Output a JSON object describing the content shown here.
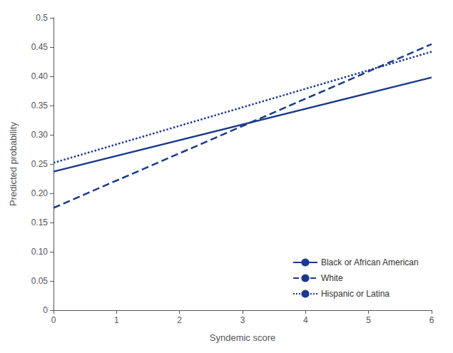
{
  "chart_data": {
    "type": "line",
    "xlabel": "Syndemic score",
    "ylabel": "Predicted probability",
    "x": [
      0,
      6
    ],
    "series": [
      {
        "name": "Black or African American",
        "values": [
          0.237,
          0.398
        ],
        "line_style": "solid"
      },
      {
        "name": "White",
        "values": [
          0.175,
          0.455
        ],
        "line_style": "dashed"
      },
      {
        "name": "Hispanic or Latina",
        "values": [
          0.252,
          0.442
        ],
        "line_style": "dotted"
      }
    ],
    "color": "#1a3a8c",
    "xlim": [
      0,
      6
    ],
    "ylim": [
      0,
      0.5
    ],
    "xticks": [
      0,
      1,
      2,
      3,
      4,
      5,
      6
    ],
    "yticks": [
      0,
      0.05,
      {
        "value": 0.1,
        "label": "0.10"
      },
      0.15,
      {
        "value": 0.2,
        "label": "0.20"
      },
      0.25,
      {
        "value": 0.3,
        "label": "0.30"
      },
      0.35,
      {
        "value": 0.4,
        "label": "0.40"
      },
      0.45,
      0.5
    ],
    "grid": false,
    "legend": "lower right"
  }
}
